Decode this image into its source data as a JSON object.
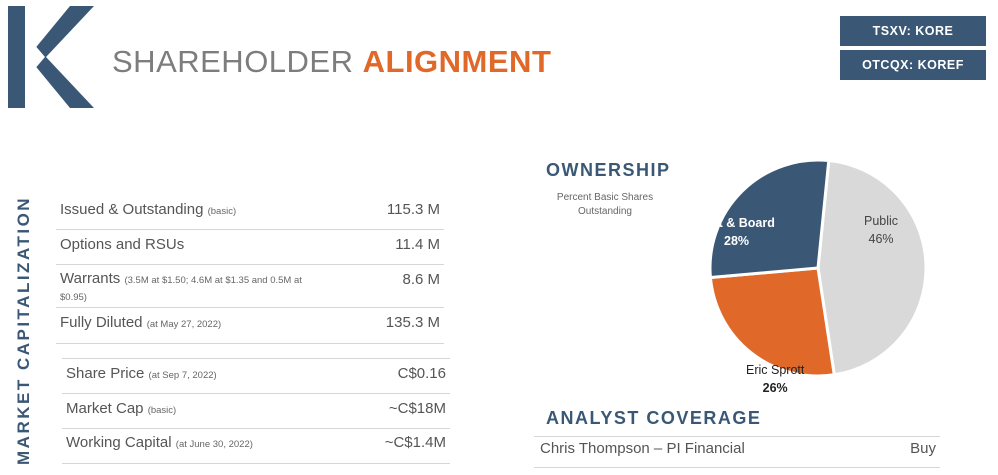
{
  "header": {
    "title_light": "SHAREHOLDER",
    "title_bold": "ALIGNMENT",
    "tickers": [
      "TSXV: KORE",
      "OTCQX: KOREF"
    ]
  },
  "side_label": "MARKET CAPITALIZATION",
  "capitalization": {
    "shares": [
      {
        "label": "Issued & Outstanding",
        "note": "(basic)",
        "value": "115.3 M"
      },
      {
        "label": "Options and RSUs",
        "note": "",
        "value": "11.4 M"
      },
      {
        "label": "Warrants",
        "note": "(3.5M at $1.50; 4.6M at $1.35 and 0.5M at $0.95)",
        "value": "8.6 M"
      },
      {
        "label": "Fully Diluted",
        "note": "(at May 27, 2022)",
        "value": "135.3 M"
      }
    ],
    "market": [
      {
        "label": "Share Price",
        "note": "(at Sep 7, 2022)",
        "value": "C$0.16"
      },
      {
        "label": "Market Cap",
        "note": "(basic)",
        "value": "~C$18M"
      },
      {
        "label": "Working Capital",
        "note": "(at June 30, 2022)",
        "value": "~C$1.4M"
      }
    ]
  },
  "ownership": {
    "title": "OWNERSHIP",
    "subtitle": "Percent Basic Shares Outstanding"
  },
  "chart_data": {
    "type": "pie",
    "title": "OWNERSHIP",
    "subtitle": "Percent Basic Shares Outstanding",
    "slices": [
      {
        "name": "Public",
        "value": 46,
        "label": "46%",
        "color": "#d9d9d9"
      },
      {
        "name": "Eric Sprott",
        "value": 26,
        "label": "26%",
        "color": "#e0692a"
      },
      {
        "name": "Management & Board",
        "value": 28,
        "label": "28%",
        "color": "#3a5876"
      }
    ],
    "visible_label_names": [
      "Public",
      "Eric Sprott",
      "nt & Board"
    ]
  },
  "analyst": {
    "title": "ANALYST COVERAGE",
    "rows": [
      {
        "name": "Chris Thompson – PI Financial",
        "rating": "Buy"
      }
    ]
  }
}
